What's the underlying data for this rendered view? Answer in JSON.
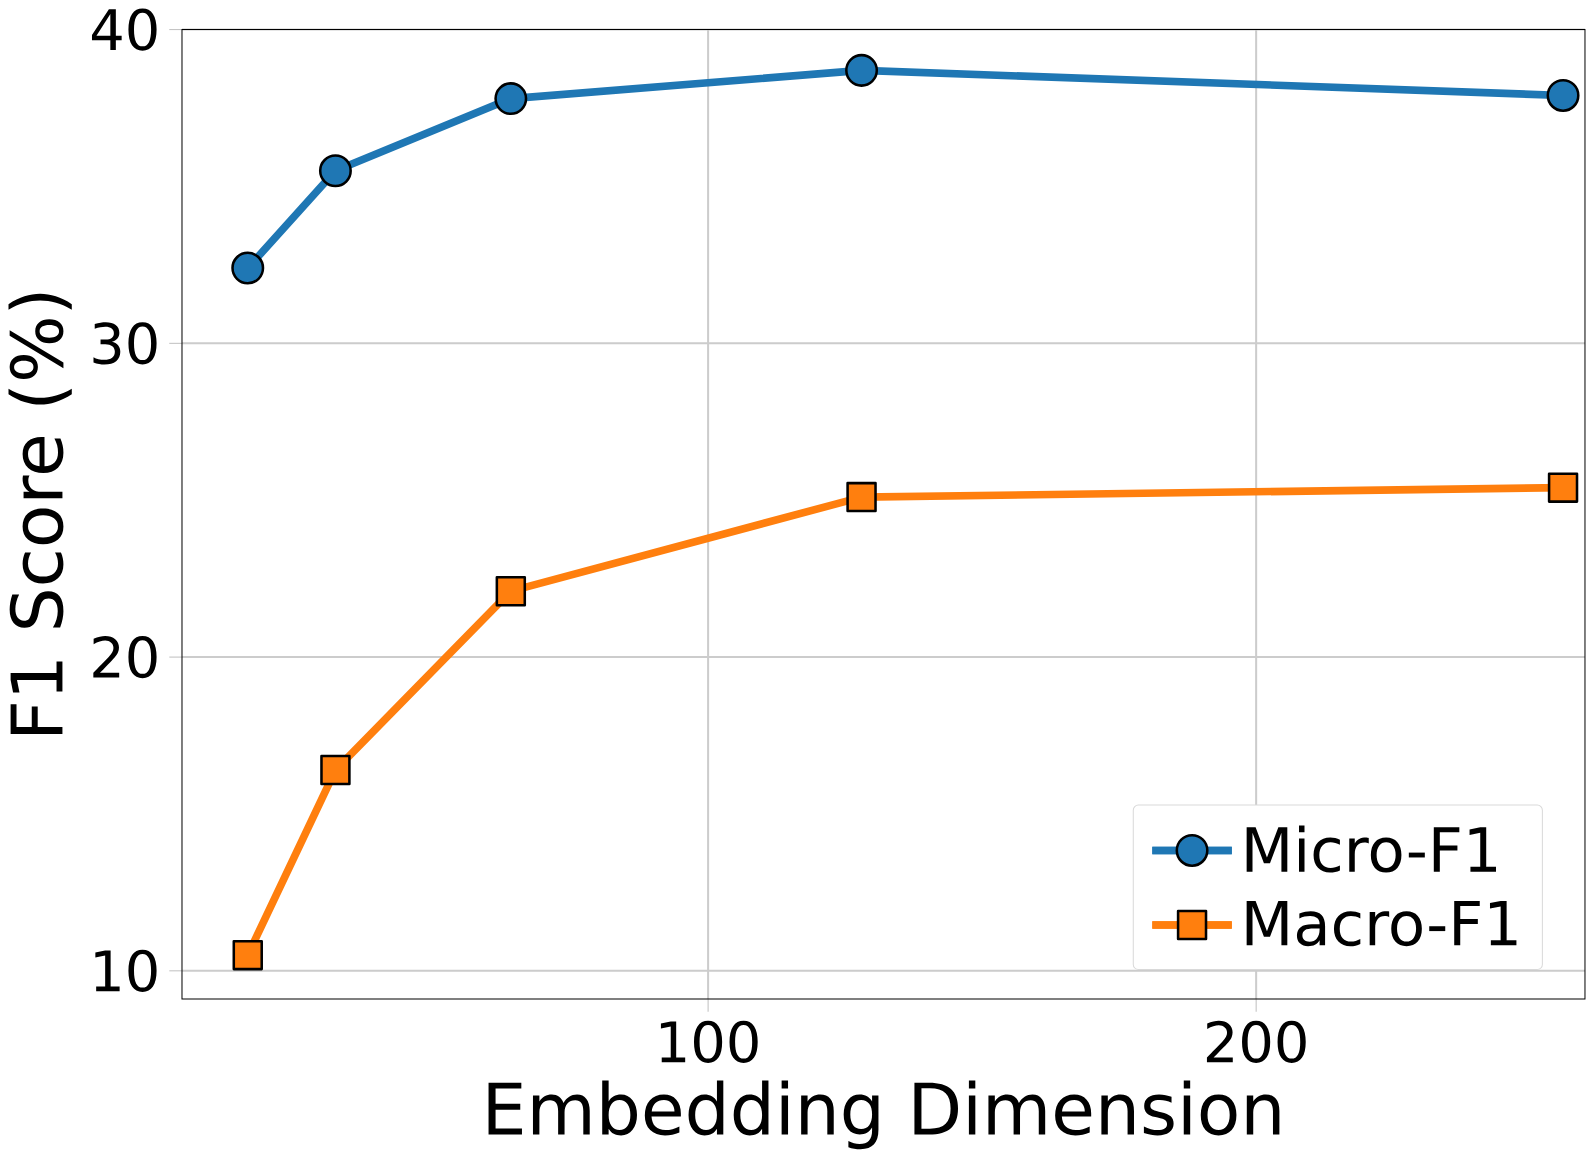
{
  "chart_data": {
    "type": "line",
    "xlabel": "Embedding Dimension",
    "ylabel": "F1 Score (%)",
    "x": [
      16,
      32,
      64,
      128,
      256
    ],
    "series": [
      {
        "name": "Micro-F1",
        "color": "#1f77b4",
        "marker": "circle",
        "values": [
          32.4,
          35.5,
          37.8,
          38.7,
          37.9
        ]
      },
      {
        "name": "Macro-F1",
        "color": "#ff7f0e",
        "marker": "square",
        "values": [
          10.5,
          16.4,
          22.1,
          25.1,
          25.4
        ]
      }
    ],
    "xlim": [
      4,
      260
    ],
    "ylim": [
      9.1,
      40
    ],
    "xticks": [
      100,
      200
    ],
    "yticks": [
      10,
      20,
      30,
      40
    ],
    "grid": true,
    "legend": "bottom right",
    "line_style": "solid"
  }
}
